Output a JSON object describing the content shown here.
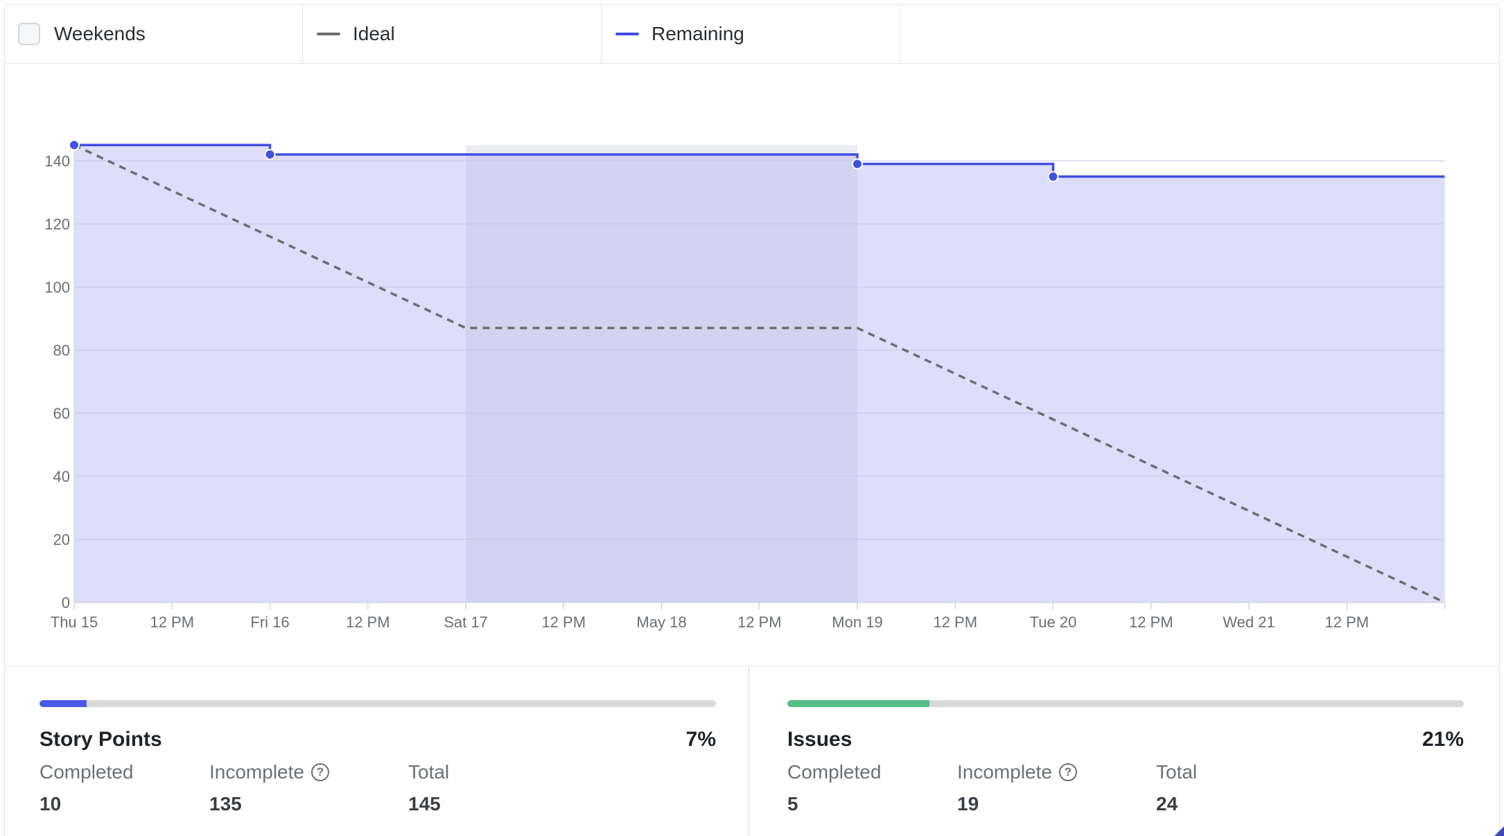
{
  "legend": {
    "weekends": {
      "label": "Weekends",
      "checked": false
    },
    "ideal": {
      "label": "Ideal",
      "color": "#6e6e6e"
    },
    "remaining": {
      "label": "Remaining",
      "color": "#4050e0"
    }
  },
  "chart_data": {
    "type": "line",
    "title": "",
    "xlabel": "",
    "ylabel": "",
    "x_tick_labels": [
      "Thu 15",
      "12 PM",
      "Fri 16",
      "12 PM",
      "Sat 17",
      "12 PM",
      "May 18",
      "12 PM",
      "Mon 19",
      "12 PM",
      "Tue 20",
      "12 PM",
      "Wed 21",
      "12 PM"
    ],
    "ylim": [
      0,
      145
    ],
    "y_ticks": [
      0,
      20,
      40,
      60,
      80,
      100,
      120,
      140
    ],
    "grid": true,
    "weekend_band": [
      "Sat 17",
      "Mon 19"
    ],
    "series": [
      {
        "name": "Ideal",
        "style": "dashed",
        "color": "#6e6e6e",
        "points": [
          {
            "x": "Thu 15",
            "y": 145
          },
          {
            "x": "Sat 17",
            "y": 87
          },
          {
            "x": "Mon 19",
            "y": 87
          },
          {
            "x": "Thu 22",
            "y": 0
          }
        ]
      },
      {
        "name": "Remaining",
        "style": "step",
        "color": "#4050e0",
        "fill": "#dcdefa",
        "points": [
          {
            "x": "Thu 15",
            "y": 145
          },
          {
            "x": "Fri 16",
            "y": 142
          },
          {
            "x": "Mon 19",
            "y": 139
          },
          {
            "x": "Tue 20",
            "y": 135
          },
          {
            "x": "Thu 22",
            "y": 135
          }
        ]
      }
    ]
  },
  "story_points": {
    "title": "Story Points",
    "percent": "7%",
    "fraction": 0.07,
    "bar_color": "#4a5ae6",
    "completed_label": "Completed",
    "completed": "10",
    "incomplete_label": "Incomplete",
    "incomplete": "135",
    "total_label": "Total",
    "total": "145"
  },
  "issues": {
    "title": "Issues",
    "percent": "21%",
    "fraction": 0.21,
    "bar_color": "#55bd85",
    "completed_label": "Completed",
    "completed": "5",
    "incomplete_label": "Incomplete",
    "incomplete": "19",
    "total_label": "Total",
    "total": "24"
  }
}
